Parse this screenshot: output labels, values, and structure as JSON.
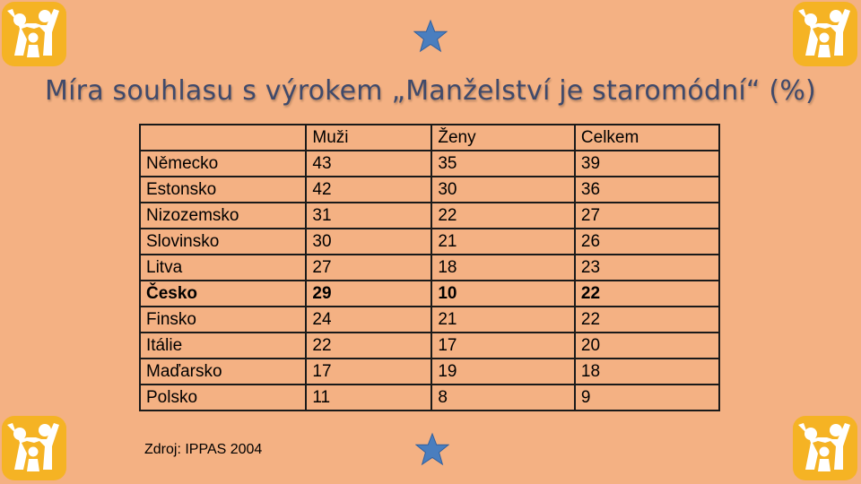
{
  "slide": {
    "title": "Míra souhlasu s výrokem „Manželství je staromódní“ (%)",
    "source": "Zdroj: IPPAS 2004",
    "accent_star_color": "#4a7ebf",
    "logo_color": "#f5b324"
  },
  "table": {
    "header": [
      "",
      "Muži",
      "Ženy",
      "Celkem"
    ],
    "rows": [
      [
        "Německo",
        "43",
        "35",
        "39"
      ],
      [
        "Estonsko",
        "42",
        "30",
        "36"
      ],
      [
        "Nizozemsko",
        "31",
        "22",
        "27"
      ],
      [
        "Slovinsko",
        "30",
        "21",
        "26"
      ],
      [
        "Litva",
        "27",
        "18",
        "23"
      ],
      [
        "Česko",
        "29",
        "10",
        "22"
      ],
      [
        "Finsko",
        "24",
        "21",
        "22"
      ],
      [
        "Itálie",
        "22",
        "17",
        "20"
      ],
      [
        "Maďarsko",
        "17",
        "19",
        "18"
      ],
      [
        "Polsko",
        "11",
        "8",
        "9"
      ]
    ]
  }
}
